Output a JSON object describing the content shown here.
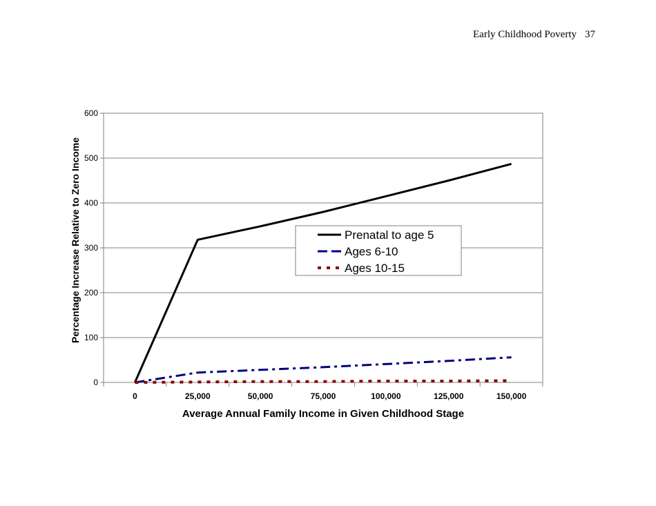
{
  "page_header": {
    "title": "Early Childhood Poverty",
    "page_number": "37"
  },
  "chart_data": {
    "type": "line",
    "title": "",
    "xlabel": "Average Annual Family Income in Given Childhood Stage",
    "ylabel": "Percentage Increase Relative to Zero Income",
    "x_tick_labels": [
      "0",
      "25,000",
      "50,000",
      "75,000",
      "100,000",
      "125,000",
      "150,000"
    ],
    "y_tick_labels": [
      "0",
      "100",
      "200",
      "300",
      "400",
      "500",
      "600"
    ],
    "xlim": [
      -12500,
      162500
    ],
    "ylim": [
      0,
      600
    ],
    "grid": "horizontal",
    "legend_position": "center-right",
    "series": [
      {
        "name": "Prenatal to age 5",
        "color": "#000000",
        "style": "solid",
        "x": [
          0,
          25000,
          50000,
          75000,
          100000,
          125000,
          150000
        ],
        "y": [
          0,
          318,
          348,
          380,
          415,
          450,
          487
        ]
      },
      {
        "name": "Ages 6-10",
        "color": "#000080",
        "style": "dash-dot",
        "x": [
          0,
          25000,
          50000,
          75000,
          100000,
          125000,
          150000
        ],
        "y": [
          0,
          22,
          28,
          34,
          41,
          48,
          56
        ]
      },
      {
        "name": "Ages 10-15",
        "color": "#8B0000",
        "style": "dotted",
        "x": [
          0,
          25000,
          50000,
          75000,
          100000,
          125000,
          150000
        ],
        "y": [
          0,
          1,
          2,
          2,
          3,
          3,
          4
        ]
      }
    ]
  }
}
